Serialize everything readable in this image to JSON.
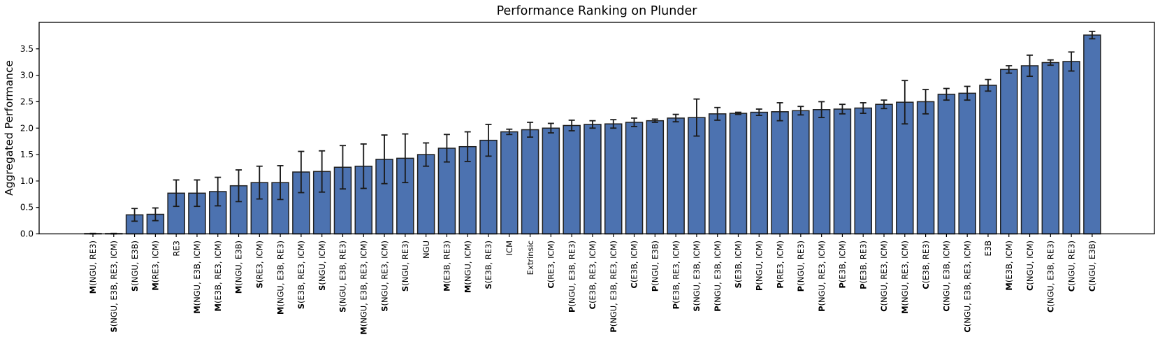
{
  "figure": {
    "background": "#ffffff",
    "axes_color": "#000000"
  },
  "chart_data": {
    "type": "bar",
    "title": "Performance Ranking on Plunder",
    "ylabel": "Aggregated Performance",
    "xlabel": "",
    "grid": false,
    "legend": "none",
    "ylim": [
      0,
      4.0
    ],
    "yticks": [
      0.0,
      0.5,
      1.0,
      1.5,
      2.0,
      2.5,
      3.0,
      3.5
    ],
    "bar_color": "#4C72B0",
    "bar_edge_color": "#1f1f1f",
    "error_bar_color": "#1a1a1a",
    "x_tick_label_rotation_deg": 90,
    "categories": [
      "M(NGU, RE3)",
      "S(NGU, E3B, RE3, ICM)",
      "S(NGU, E3B)",
      "M(RE3, ICM)",
      "RE3",
      "M(NGU, E3B, ICM)",
      "M(E3B, RE3, ICM)",
      "M(NGU, E3B)",
      "S(RE3, ICM)",
      "M(NGU, E3B, RE3)",
      "S(E3B, RE3, ICM)",
      "S(NGU, ICM)",
      "S(NGU, E3B, RE3)",
      "M(NGU, E3B, RE3, ICM)",
      "S(NGU, RE3, ICM)",
      "S(NGU, RE3)",
      "NGU",
      "M(E3B, RE3)",
      "M(NGU, ICM)",
      "S(E3B, RE3)",
      "ICM",
      "Extrinsic",
      "C(RE3, ICM)",
      "P(NGU, E3B, RE3)",
      "C(E3B, RE3, ICM)",
      "P(NGU, E3B, RE3, ICM)",
      "C(E3B, ICM)",
      "P(NGU, E3B)",
      "P(E3B, RE3, ICM)",
      "S(NGU, E3B, ICM)",
      "P(NGU, E3B, ICM)",
      "S(E3B, ICM)",
      "P(NGU, ICM)",
      "P(RE3, ICM)",
      "P(NGU, RE3)",
      "P(NGU, RE3, ICM)",
      "P(E3B, ICM)",
      "P(E3B, RE3)",
      "C(NGU, RE3, ICM)",
      "M(NGU, RE3, ICM)",
      "C(E3B, RE3)",
      "C(NGU, E3B, ICM)",
      "C(NGU, E3B, RE3, ICM)",
      "E3B",
      "M(E3B, ICM)",
      "C(NGU, ICM)",
      "C(NGU, E3B, RE3)",
      "C(NGU, RE3)",
      "C(NGU, E3B)"
    ],
    "values": [
      0.0,
      0.0,
      0.36,
      0.37,
      0.77,
      0.77,
      0.8,
      0.91,
      0.97,
      0.97,
      1.17,
      1.18,
      1.26,
      1.28,
      1.41,
      1.43,
      1.5,
      1.62,
      1.65,
      1.77,
      1.93,
      1.97,
      2.0,
      2.05,
      2.07,
      2.08,
      2.11,
      2.14,
      2.19,
      2.2,
      2.27,
      2.28,
      2.3,
      2.31,
      2.33,
      2.35,
      2.36,
      2.38,
      2.45,
      2.49,
      2.5,
      2.64,
      2.66,
      2.81,
      3.11,
      3.18,
      3.24,
      3.26,
      3.76
    ],
    "errors": [
      0.01,
      0.01,
      0.12,
      0.12,
      0.25,
      0.25,
      0.27,
      0.3,
      0.31,
      0.32,
      0.39,
      0.39,
      0.41,
      0.42,
      0.46,
      0.46,
      0.22,
      0.26,
      0.28,
      0.3,
      0.05,
      0.14,
      0.09,
      0.1,
      0.07,
      0.08,
      0.08,
      0.03,
      0.07,
      0.35,
      0.12,
      0.02,
      0.06,
      0.17,
      0.08,
      0.15,
      0.09,
      0.1,
      0.08,
      0.41,
      0.23,
      0.11,
      0.13,
      0.11,
      0.07,
      0.2,
      0.05,
      0.18,
      0.07
    ]
  }
}
